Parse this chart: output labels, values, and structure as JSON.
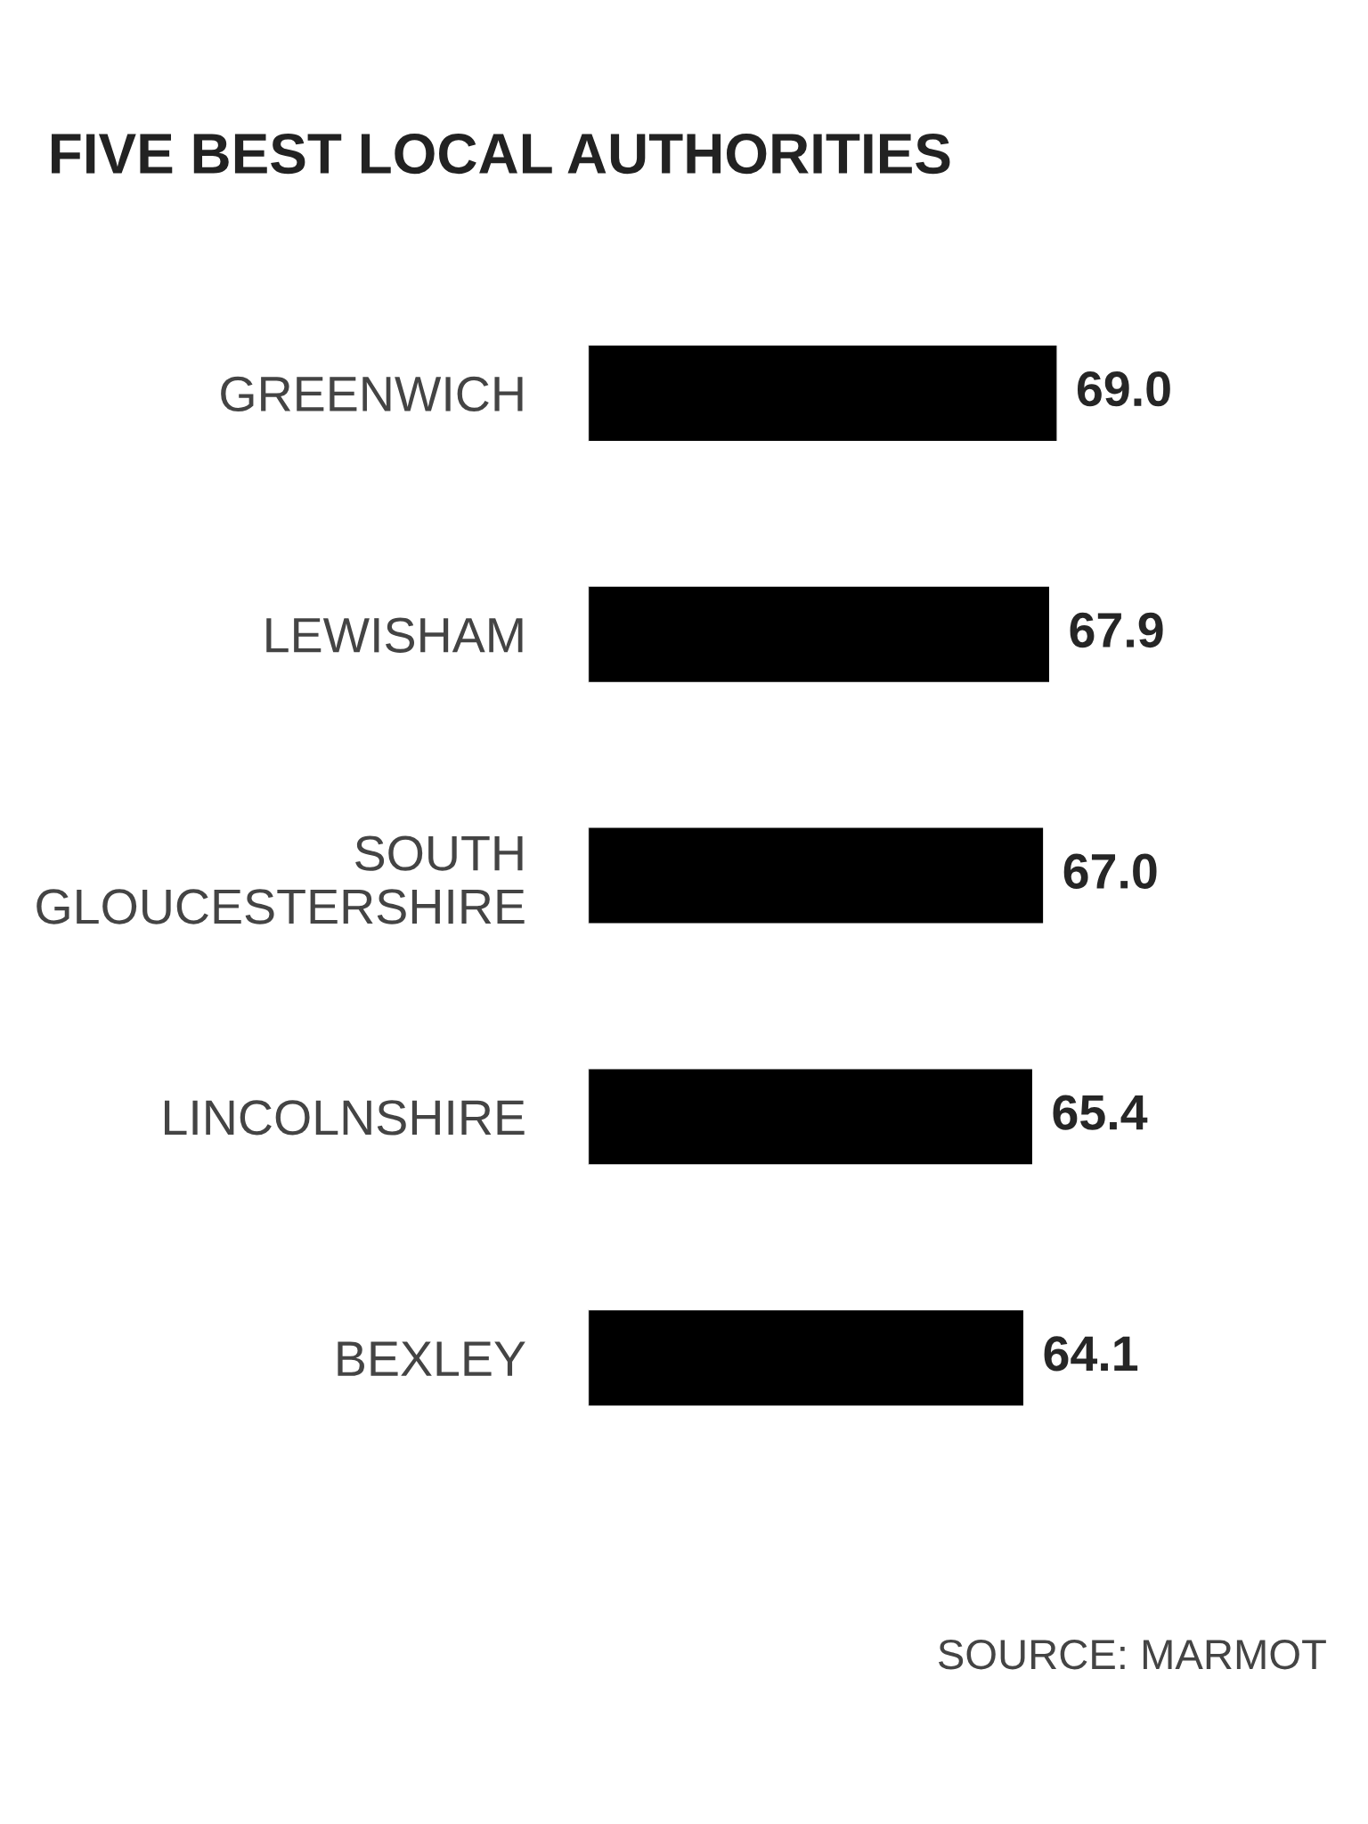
{
  "chart_data": {
    "type": "bar",
    "orientation": "horizontal",
    "title": "FIVE BEST LOCAL AUTHORITIES",
    "categories": [
      "GREENWICH",
      "LEWISHAM",
      "SOUTH\nGLOUCESTERSHIRE",
      "LINCOLNSHIRE",
      "BEXLEY"
    ],
    "values": [
      69.0,
      67.9,
      67.0,
      65.4,
      64.1
    ],
    "color": "#000000",
    "data_labels": true,
    "value_labels": [
      "69.0",
      "67.9",
      "67.0",
      "65.4",
      "64.1"
    ],
    "annotations": [
      "SOURCE: MARMOT"
    ],
    "grid": false,
    "legend": false
  }
}
